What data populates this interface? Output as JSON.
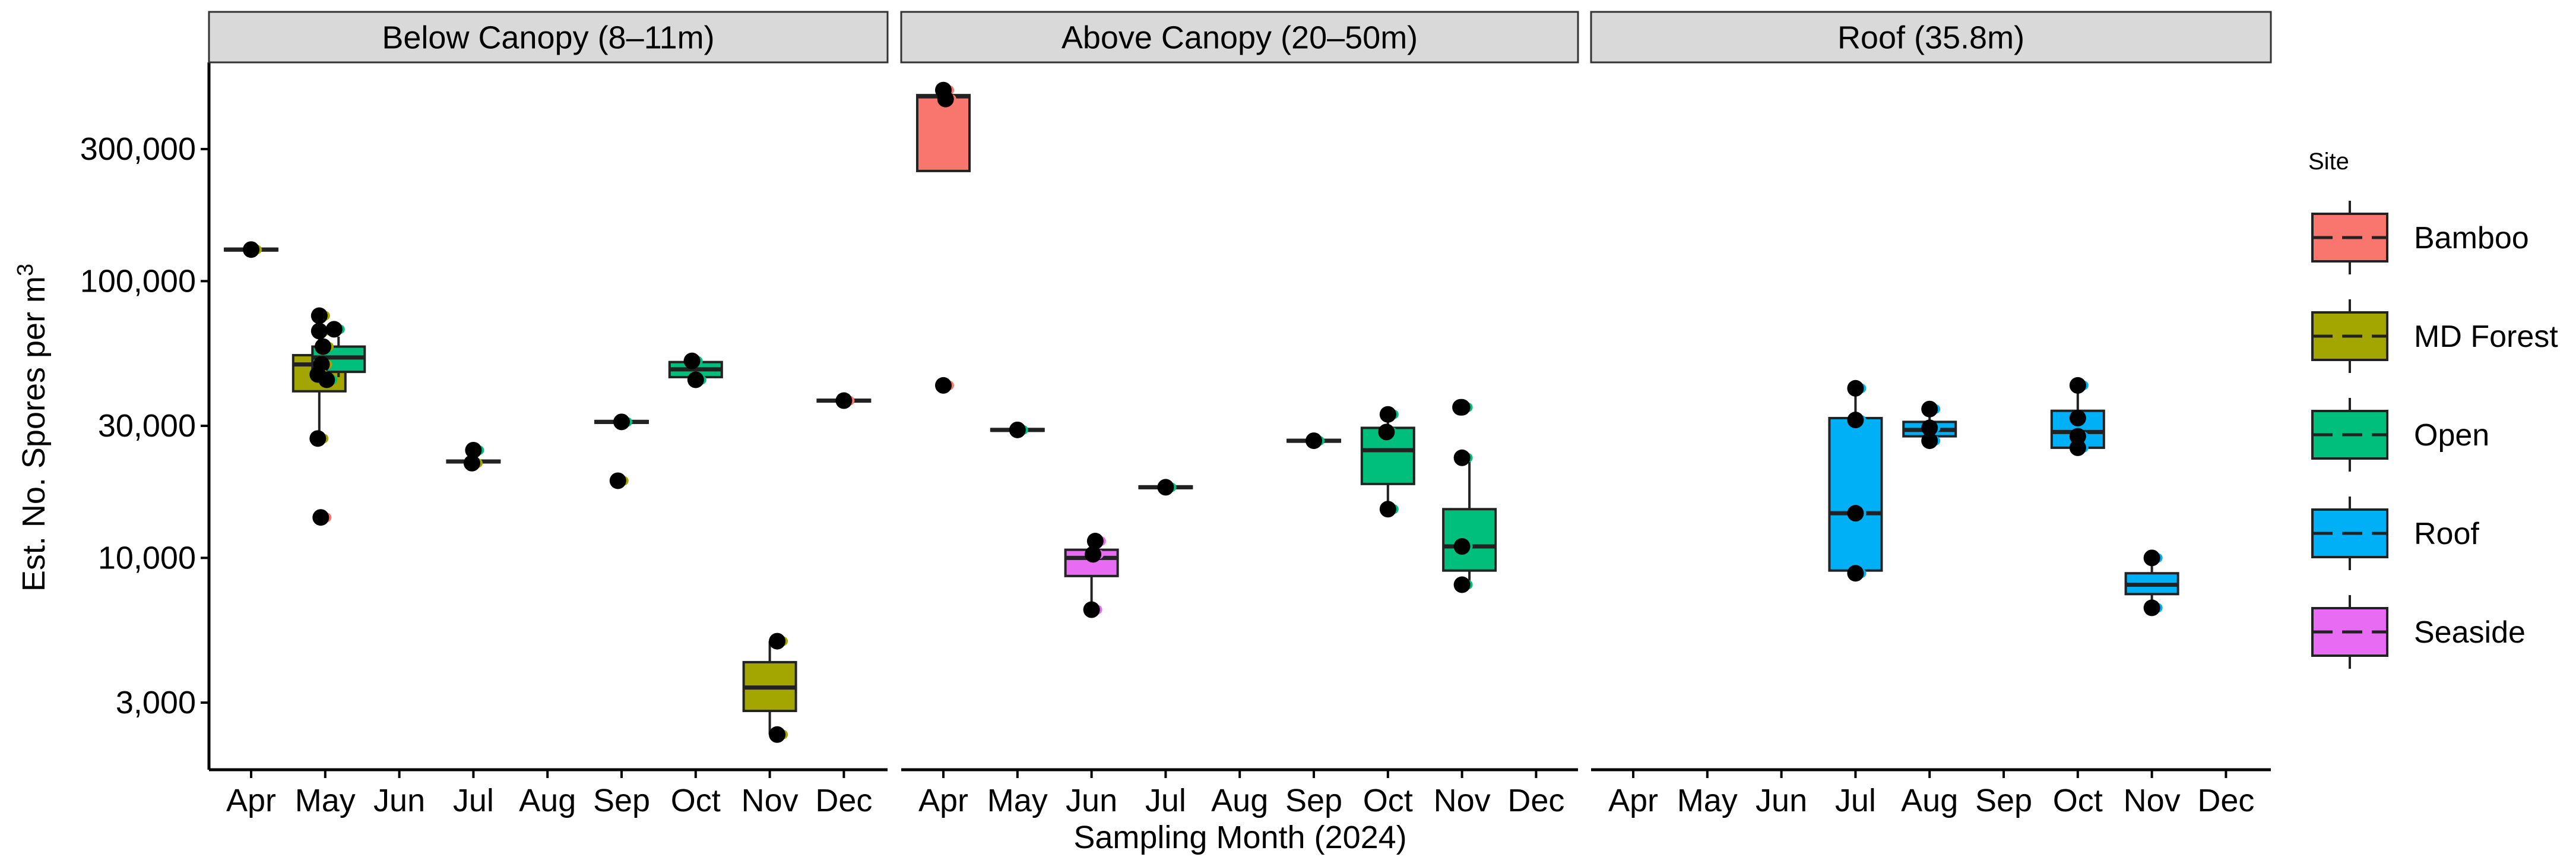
{
  "chart_data": {
    "type": "box",
    "x_title": "Sampling Month (2024)",
    "y_title_base": "Est. No. Spores per m",
    "y_title_superscript": "3",
    "y_scale": "log10",
    "y_ticks": [
      3000,
      10000,
      30000,
      100000,
      300000
    ],
    "y_tick_labels": [
      "3,000",
      "10,000",
      "30,000",
      "100,000",
      "300,000"
    ],
    "months": [
      "Apr",
      "May",
      "Jun",
      "Jul",
      "Aug",
      "Sep",
      "Oct",
      "Nov",
      "Dec"
    ],
    "legend": {
      "title": "Site",
      "placement": "right",
      "entries": [
        {
          "label": "Bamboo",
          "color": "#F8766D"
        },
        {
          "label": "MD Forest",
          "color": "#A3A500"
        },
        {
          "label": "Open",
          "color": "#00BF7D"
        },
        {
          "label": "Roof",
          "color": "#00B0F6"
        },
        {
          "label": "Seaside",
          "color": "#E76BF3"
        }
      ]
    },
    "panels": [
      {
        "strip": "Below Canopy (8–11m)",
        "boxes": [
          {
            "month": "Apr",
            "site": "MD Forest",
            "q1": 130000,
            "median": 130000,
            "q3": 130000,
            "lo": 130000,
            "hi": 130000,
            "dodge": 0
          },
          {
            "month": "May",
            "site": "MD Forest",
            "q1": 40000,
            "median": 50000,
            "q3": 54000,
            "lo": 27000,
            "hi": 76000,
            "dodge": -0.08
          },
          {
            "month": "May",
            "site": "Open",
            "q1": 47000,
            "median": 53000,
            "q3": 58000,
            "lo": 45000,
            "hi": 63000,
            "dodge": 0.18
          },
          {
            "month": "Jul",
            "site": "MD Forest",
            "q1": 22300,
            "median": 22300,
            "q3": 22300,
            "lo": 22300,
            "hi": 22300,
            "dodge": 0
          },
          {
            "month": "Sep",
            "site": "Open",
            "q1": 31000,
            "median": 31000,
            "q3": 31000,
            "lo": 31000,
            "hi": 31000,
            "dodge": 0
          },
          {
            "month": "Oct",
            "site": "Open",
            "q1": 45000,
            "median": 48000,
            "q3": 51000,
            "lo": 45000,
            "hi": 51000,
            "dodge": 0
          },
          {
            "month": "Nov",
            "site": "MD Forest",
            "q1": 2800,
            "median": 3400,
            "q3": 4200,
            "lo": 2300,
            "hi": 5000,
            "dodge": 0
          },
          {
            "month": "Dec",
            "site": "Bamboo",
            "q1": 37000,
            "median": 37000,
            "q3": 37000,
            "lo": 37000,
            "hi": 37000,
            "dodge": 0
          }
        ],
        "points": [
          {
            "month": "Apr",
            "value": 130000,
            "site": "MD Forest",
            "jitter": 0.0
          },
          {
            "month": "May",
            "value": 75000,
            "site": "MD Forest",
            "jitter": -0.08
          },
          {
            "month": "May",
            "value": 66000,
            "site": "MD Forest",
            "jitter": -0.08
          },
          {
            "month": "May",
            "value": 58000,
            "site": "MD Forest",
            "jitter": -0.03
          },
          {
            "month": "May",
            "value": 50000,
            "site": "MD Forest",
            "jitter": -0.05
          },
          {
            "month": "May",
            "value": 46000,
            "site": "MD Forest",
            "jitter": -0.1
          },
          {
            "month": "May",
            "value": 27000,
            "site": "MD Forest",
            "jitter": -0.1
          },
          {
            "month": "May",
            "value": 14000,
            "site": "Bamboo",
            "jitter": -0.06
          },
          {
            "month": "May",
            "value": 67000,
            "site": "Open",
            "jitter": 0.12
          },
          {
            "month": "May",
            "value": 44000,
            "site": "Open",
            "jitter": 0.02
          },
          {
            "month": "Jul",
            "value": 24500,
            "site": "Open",
            "jitter": 0.0
          },
          {
            "month": "Jul",
            "value": 22000,
            "site": "MD Forest",
            "jitter": -0.02
          },
          {
            "month": "Sep",
            "value": 31000,
            "site": "Open",
            "jitter": 0.0
          },
          {
            "month": "Sep",
            "value": 19000,
            "site": "MD Forest",
            "jitter": -0.05
          },
          {
            "month": "Oct",
            "value": 51500,
            "site": "Open",
            "jitter": -0.05
          },
          {
            "month": "Oct",
            "value": 44000,
            "site": "Open",
            "jitter": 0.0
          },
          {
            "month": "Nov",
            "value": 5000,
            "site": "MD Forest",
            "jitter": 0.1
          },
          {
            "month": "Nov",
            "value": 2300,
            "site": "MD Forest",
            "jitter": 0.1
          },
          {
            "month": "Dec",
            "value": 37000,
            "site": "Bamboo",
            "jitter": 0.0
          }
        ]
      },
      {
        "strip": "Above Canopy (20–50m)",
        "boxes": [
          {
            "month": "Apr",
            "site": "Bamboo",
            "q1": 250000,
            "median": 465000,
            "q3": 470000,
            "lo": 250000,
            "hi": 490000,
            "dodge": 0
          },
          {
            "month": "May",
            "site": "Open",
            "q1": 29000,
            "median": 29000,
            "q3": 29000,
            "lo": 29000,
            "hi": 29000,
            "dodge": 0
          },
          {
            "month": "Jun",
            "site": "Seaside",
            "q1": 8600,
            "median": 10000,
            "q3": 10700,
            "lo": 6500,
            "hi": 11500,
            "dodge": 0
          },
          {
            "month": "Jul",
            "site": "Open",
            "q1": 18000,
            "median": 18000,
            "q3": 18000,
            "lo": 18000,
            "hi": 18000,
            "dodge": 0
          },
          {
            "month": "Sep",
            "site": "Open",
            "q1": 26500,
            "median": 26500,
            "q3": 26500,
            "lo": 26500,
            "hi": 26500,
            "dodge": 0
          },
          {
            "month": "Oct",
            "site": "Open",
            "q1": 18500,
            "median": 24500,
            "q3": 29500,
            "lo": 15000,
            "hi": 33000,
            "dodge": 0
          },
          {
            "month": "Nov",
            "site": "Open",
            "q1": 9000,
            "median": 11000,
            "q3": 15000,
            "lo": 8000,
            "hi": 23000,
            "dodge": 0.1
          }
        ],
        "points": [
          {
            "month": "Apr",
            "value": 490000,
            "site": "Bamboo",
            "jitter": 0.0
          },
          {
            "month": "Apr",
            "value": 455000,
            "site": "Bamboo",
            "jitter": 0.03
          },
          {
            "month": "Apr",
            "value": 42000,
            "site": "Bamboo",
            "jitter": 0.0
          },
          {
            "month": "May",
            "value": 29000,
            "site": "Open",
            "jitter": 0.0
          },
          {
            "month": "Jun",
            "value": 11500,
            "site": "Seaside",
            "jitter": 0.05
          },
          {
            "month": "Jun",
            "value": 10300,
            "site": "Seaside",
            "jitter": 0.02
          },
          {
            "month": "Jun",
            "value": 6500,
            "site": "Seaside",
            "jitter": 0.0
          },
          {
            "month": "Jul",
            "value": 18000,
            "site": "Open",
            "jitter": 0.0
          },
          {
            "month": "Sep",
            "value": 26500,
            "site": "Open",
            "jitter": 0.0
          },
          {
            "month": "Oct",
            "value": 33000,
            "site": "Open",
            "jitter": 0.0
          },
          {
            "month": "Oct",
            "value": 28500,
            "site": "Open",
            "jitter": -0.02
          },
          {
            "month": "Oct",
            "value": 15000,
            "site": "Open",
            "jitter": 0.0
          },
          {
            "month": "Nov",
            "value": 35000,
            "site": "Bamboo",
            "jitter": -0.02
          },
          {
            "month": "Nov",
            "value": 35000,
            "site": "Open",
            "jitter": 0.0
          },
          {
            "month": "Nov",
            "value": 23000,
            "site": "Open",
            "jitter": 0.0
          },
          {
            "month": "Nov",
            "value": 11000,
            "site": "Open",
            "jitter": 0.0
          },
          {
            "month": "Nov",
            "value": 8000,
            "site": "Open",
            "jitter": 0.0
          }
        ]
      },
      {
        "strip": "Roof (35.8m)",
        "boxes": [
          {
            "month": "Jul",
            "site": "Roof",
            "q1": 9000,
            "median": 14500,
            "q3": 32000,
            "lo": 8800,
            "hi": 41000,
            "dodge": 0
          },
          {
            "month": "Aug",
            "site": "Roof",
            "q1": 27500,
            "median": 29000,
            "q3": 31000,
            "lo": 26000,
            "hi": 35000,
            "dodge": 0
          },
          {
            "month": "Oct",
            "site": "Roof",
            "q1": 25000,
            "median": 28500,
            "q3": 34000,
            "lo": 24000,
            "hi": 41000,
            "dodge": 0
          },
          {
            "month": "Nov",
            "site": "Roof",
            "q1": 7400,
            "median": 8000,
            "q3": 8800,
            "lo": 6600,
            "hi": 10000,
            "dodge": 0
          }
        ],
        "points": [
          {
            "month": "Jul",
            "value": 41000,
            "site": "Roof",
            "jitter": 0.0
          },
          {
            "month": "Jul",
            "value": 31500,
            "site": "Roof",
            "jitter": 0.0
          },
          {
            "month": "Jul",
            "value": 14500,
            "site": "Roof",
            "jitter": 0.0
          },
          {
            "month": "Jul",
            "value": 8800,
            "site": "Roof",
            "jitter": 0.0
          },
          {
            "month": "Aug",
            "value": 34500,
            "site": "Roof",
            "jitter": 0.0
          },
          {
            "month": "Aug",
            "value": 29500,
            "site": "Roof",
            "jitter": 0.0
          },
          {
            "month": "Aug",
            "value": 26500,
            "site": "Roof",
            "jitter": 0.0
          },
          {
            "month": "Oct",
            "value": 42000,
            "site": "Roof",
            "jitter": 0.0
          },
          {
            "month": "Oct",
            "value": 32000,
            "site": "Roof",
            "jitter": 0.0
          },
          {
            "month": "Oct",
            "value": 27500,
            "site": "Roof",
            "jitter": 0.0
          },
          {
            "month": "Oct",
            "value": 25000,
            "site": "Roof",
            "jitter": 0.0
          },
          {
            "month": "Nov",
            "value": 10000,
            "site": "Roof",
            "jitter": 0.0
          },
          {
            "month": "Nov",
            "value": 6600,
            "site": "Roof",
            "jitter": 0.0
          }
        ]
      }
    ]
  }
}
